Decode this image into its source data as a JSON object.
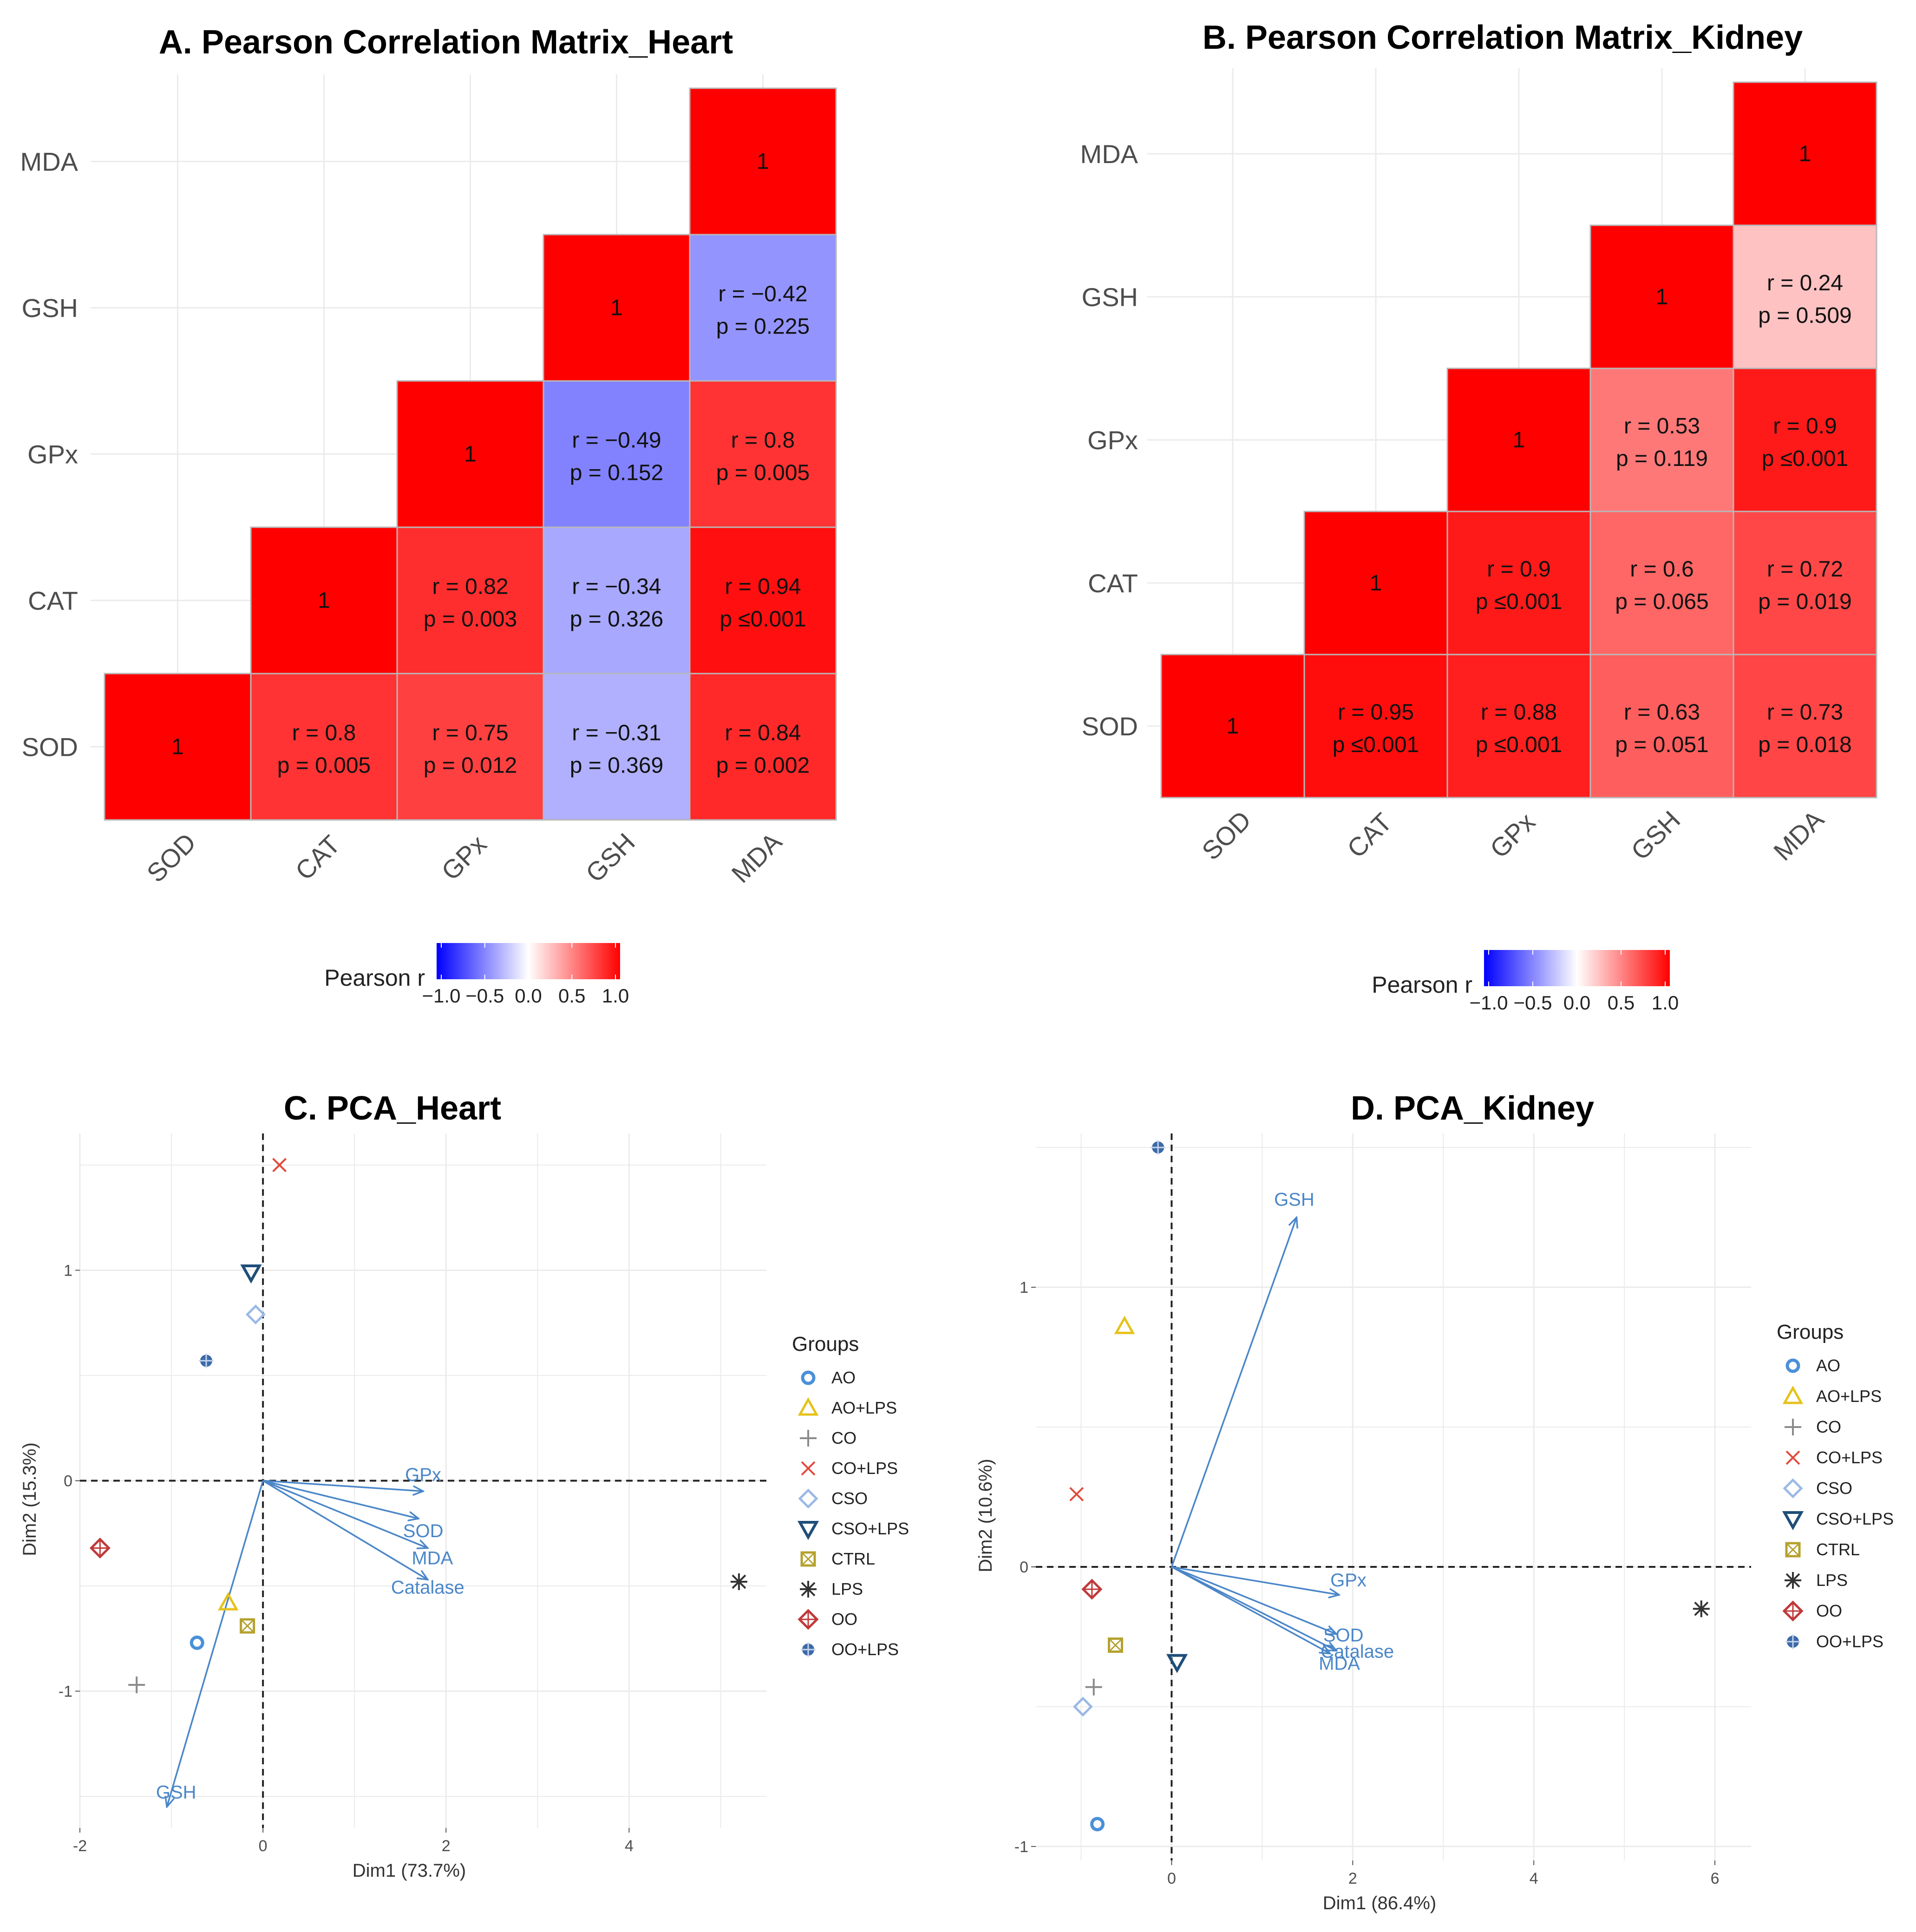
{
  "chart_data": [
    {
      "id": "A",
      "type": "heatmap",
      "title": "A. Pearson Correlation Matrix_Heart",
      "variables": [
        "SOD",
        "CAT",
        "GPx",
        "GSH",
        "MDA"
      ],
      "cells": [
        {
          "row": "MDA",
          "col": "MDA",
          "r": 1,
          "label_r": "1",
          "label_p": ""
        },
        {
          "row": "GSH",
          "col": "GSH",
          "r": 1,
          "label_r": "1",
          "label_p": ""
        },
        {
          "row": "GSH",
          "col": "MDA",
          "r": -0.42,
          "label_r": "r = −0.42",
          "label_p": "p = 0.225"
        },
        {
          "row": "GPx",
          "col": "GPx",
          "r": 1,
          "label_r": "1",
          "label_p": ""
        },
        {
          "row": "GPx",
          "col": "GSH",
          "r": -0.49,
          "label_r": "r = −0.49",
          "label_p": "p = 0.152"
        },
        {
          "row": "GPx",
          "col": "MDA",
          "r": 0.8,
          "label_r": "r = 0.8",
          "label_p": "p = 0.005"
        },
        {
          "row": "CAT",
          "col": "CAT",
          "r": 1,
          "label_r": "1",
          "label_p": ""
        },
        {
          "row": "CAT",
          "col": "GPx",
          "r": 0.82,
          "label_r": "r = 0.82",
          "label_p": "p = 0.003"
        },
        {
          "row": "CAT",
          "col": "GSH",
          "r": -0.34,
          "label_r": "r = −0.34",
          "label_p": "p = 0.326"
        },
        {
          "row": "CAT",
          "col": "MDA",
          "r": 0.94,
          "label_r": "r = 0.94",
          "label_p": "p ≤0.001"
        },
        {
          "row": "SOD",
          "col": "SOD",
          "r": 1,
          "label_r": "1",
          "label_p": ""
        },
        {
          "row": "SOD",
          "col": "CAT",
          "r": 0.8,
          "label_r": "r = 0.8",
          "label_p": "p = 0.005"
        },
        {
          "row": "SOD",
          "col": "GPx",
          "r": 0.75,
          "label_r": "r = 0.75",
          "label_p": "p = 0.012"
        },
        {
          "row": "SOD",
          "col": "GSH",
          "r": -0.31,
          "label_r": "r = −0.31",
          "label_p": "p = 0.369"
        },
        {
          "row": "SOD",
          "col": "MDA",
          "r": 0.84,
          "label_r": "r = 0.84",
          "label_p": "p = 0.002"
        }
      ],
      "legend": {
        "title": "Pearson r",
        "ticks": [
          "−1.0",
          "−0.5",
          "0.0",
          "0.5",
          "1.0"
        ],
        "range": [
          -1,
          1
        ],
        "low_color": "#0000ff",
        "mid_color": "#ffffff",
        "high_color": "#ff0000"
      }
    },
    {
      "id": "B",
      "type": "heatmap",
      "title": "B. Pearson Correlation Matrix_Kidney",
      "variables": [
        "SOD",
        "CAT",
        "GPx",
        "GSH",
        "MDA"
      ],
      "cells": [
        {
          "row": "MDA",
          "col": "MDA",
          "r": 1,
          "label_r": "1",
          "label_p": ""
        },
        {
          "row": "GSH",
          "col": "GSH",
          "r": 1,
          "label_r": "1",
          "label_p": ""
        },
        {
          "row": "GSH",
          "col": "MDA",
          "r": 0.24,
          "label_r": "r = 0.24",
          "label_p": "p = 0.509"
        },
        {
          "row": "GPx",
          "col": "GPx",
          "r": 1,
          "label_r": "1",
          "label_p": ""
        },
        {
          "row": "GPx",
          "col": "GSH",
          "r": 0.53,
          "label_r": "r = 0.53",
          "label_p": "p = 0.119"
        },
        {
          "row": "GPx",
          "col": "MDA",
          "r": 0.9,
          "label_r": "r = 0.9",
          "label_p": "p ≤0.001"
        },
        {
          "row": "CAT",
          "col": "CAT",
          "r": 1,
          "label_r": "1",
          "label_p": ""
        },
        {
          "row": "CAT",
          "col": "GPx",
          "r": 0.9,
          "label_r": "r = 0.9",
          "label_p": "p ≤0.001"
        },
        {
          "row": "CAT",
          "col": "GSH",
          "r": 0.6,
          "label_r": "r = 0.6",
          "label_p": "p = 0.065"
        },
        {
          "row": "CAT",
          "col": "MDA",
          "r": 0.72,
          "label_r": "r = 0.72",
          "label_p": "p = 0.019"
        },
        {
          "row": "SOD",
          "col": "SOD",
          "r": 1,
          "label_r": "1",
          "label_p": ""
        },
        {
          "row": "SOD",
          "col": "CAT",
          "r": 0.95,
          "label_r": "r = 0.95",
          "label_p": "p ≤0.001"
        },
        {
          "row": "SOD",
          "col": "GPx",
          "r": 0.88,
          "label_r": "r = 0.88",
          "label_p": "p ≤0.001"
        },
        {
          "row": "SOD",
          "col": "GSH",
          "r": 0.63,
          "label_r": "r = 0.63",
          "label_p": "p = 0.051"
        },
        {
          "row": "SOD",
          "col": "MDA",
          "r": 0.73,
          "label_r": "r = 0.73",
          "label_p": "p = 0.018"
        }
      ],
      "legend": {
        "title": "Pearson r",
        "ticks": [
          "−1.0",
          "−0.5",
          "0.0",
          "0.5",
          "1.0"
        ],
        "range": [
          -1,
          1
        ],
        "low_color": "#0000ff",
        "mid_color": "#ffffff",
        "high_color": "#ff0000"
      }
    },
    {
      "id": "C",
      "type": "scatter",
      "title": "C. PCA_Heart",
      "xlabel": "Dim1 (73.7%)",
      "ylabel": "Dim2 (15.3%)",
      "xlim": [
        -2,
        5.5
      ],
      "ylim": [
        -1.65,
        1.65
      ],
      "xticks": [
        -2,
        0,
        2,
        4
      ],
      "xtick_labels": [
        "-2",
        "0",
        "2",
        "4"
      ],
      "yticks": [
        -1,
        0,
        1
      ],
      "ytick_labels": [
        "-1",
        "0",
        "1"
      ],
      "points": [
        {
          "group": "AO",
          "x": -0.72,
          "y": -0.77
        },
        {
          "group": "AO+LPS",
          "x": -0.38,
          "y": -0.58
        },
        {
          "group": "CO",
          "x": -1.38,
          "y": -0.97
        },
        {
          "group": "CO+LPS",
          "x": 0.18,
          "y": 1.5
        },
        {
          "group": "CSO",
          "x": -0.08,
          "y": 0.79
        },
        {
          "group": "CSO+LPS",
          "x": -0.13,
          "y": 0.99
        },
        {
          "group": "CTRL",
          "x": -0.17,
          "y": -0.69
        },
        {
          "group": "LPS",
          "x": 5.2,
          "y": -0.48
        },
        {
          "group": "OO",
          "x": -1.78,
          "y": -0.32
        },
        {
          "group": "OO+LPS",
          "x": -0.62,
          "y": 0.57
        }
      ],
      "loadings": [
        {
          "name": "GPx",
          "x": 1.75,
          "y": -0.05
        },
        {
          "name": "SOD",
          "x": 1.7,
          "y": -0.18
        },
        {
          "name": "MDA",
          "x": 1.8,
          "y": -0.32
        },
        {
          "name": "Catalase",
          "x": 1.8,
          "y": -0.47
        },
        {
          "name": "GSH",
          "x": -1.05,
          "y": -1.55
        }
      ],
      "legend_title": "Groups"
    },
    {
      "id": "D",
      "type": "scatter",
      "title": "D. PCA_Kidney",
      "xlabel": "Dim1 (86.4%)",
      "ylabel": "Dim2 (10.6%)",
      "xlim": [
        -1.5,
        6.4
      ],
      "ylim": [
        -1.05,
        1.55
      ],
      "xticks": [
        0,
        2,
        4,
        6
      ],
      "xtick_labels": [
        "0",
        "2",
        "4",
        "6"
      ],
      "yticks": [
        -1,
        0,
        1
      ],
      "ytick_labels": [
        "-1",
        "0",
        "1"
      ],
      "points": [
        {
          "group": "AO",
          "x": -0.82,
          "y": -0.92
        },
        {
          "group": "AO+LPS",
          "x": -0.52,
          "y": 0.86
        },
        {
          "group": "CO",
          "x": -0.86,
          "y": -0.43
        },
        {
          "group": "CO+LPS",
          "x": -1.05,
          "y": 0.26
        },
        {
          "group": "CSO",
          "x": -0.98,
          "y": -0.5
        },
        {
          "group": "CSO+LPS",
          "x": 0.06,
          "y": -0.34
        },
        {
          "group": "CTRL",
          "x": -0.62,
          "y": -0.28
        },
        {
          "group": "LPS",
          "x": 5.85,
          "y": -0.15
        },
        {
          "group": "OO",
          "x": -0.88,
          "y": -0.08
        },
        {
          "group": "OO+LPS",
          "x": -0.15,
          "y": 1.5
        }
      ],
      "loadings": [
        {
          "name": "GSH",
          "x": 1.38,
          "y": 1.25
        },
        {
          "name": "GPx",
          "x": 1.85,
          "y": -0.1
        },
        {
          "name": "SOD",
          "x": 1.82,
          "y": -0.24
        },
        {
          "name": "Catalase",
          "x": 1.82,
          "y": -0.3
        },
        {
          "name": "MDA",
          "x": 1.75,
          "y": -0.31
        }
      ],
      "legend_title": "Groups"
    }
  ],
  "groups": [
    {
      "name": "AO",
      "color": "#4a90d9",
      "shape": "circle"
    },
    {
      "name": "AO+LPS",
      "color": "#e6c21a",
      "shape": "triangle"
    },
    {
      "name": "CO",
      "color": "#8a8a8a",
      "shape": "plus"
    },
    {
      "name": "CO+LPS",
      "color": "#e04a3a",
      "shape": "cross"
    },
    {
      "name": "CSO",
      "color": "#9bb9e6",
      "shape": "diamond"
    },
    {
      "name": "CSO+LPS",
      "color": "#1f4e79",
      "shape": "triangle-down"
    },
    {
      "name": "CTRL",
      "color": "#b5a12e",
      "shape": "square-x"
    },
    {
      "name": "LPS",
      "color": "#333333",
      "shape": "star"
    },
    {
      "name": "OO",
      "color": "#c0393a",
      "shape": "diamond-plus"
    },
    {
      "name": "OO+LPS",
      "color": "#3c6aa8",
      "shape": "circle-plus"
    }
  ],
  "colors": {
    "arrow": "#4a86c8",
    "grid": "#ebebeb"
  }
}
